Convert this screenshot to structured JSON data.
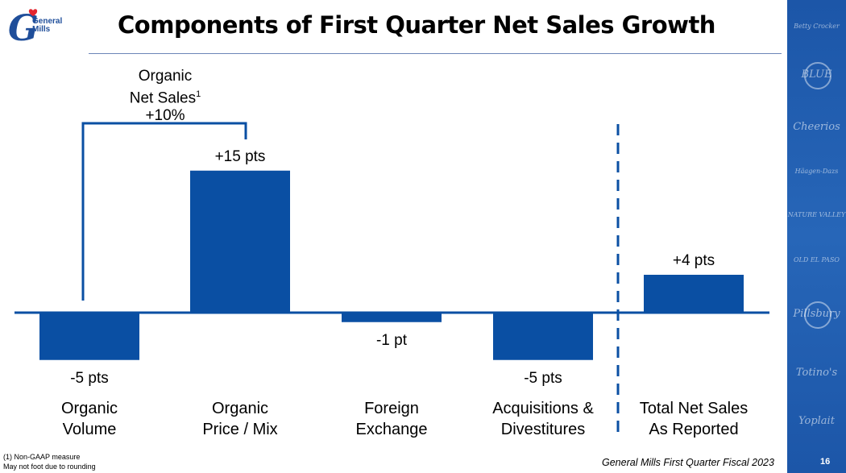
{
  "header": {
    "title": "Components of First Quarter Net Sales Growth",
    "logo_text": "General\nMills"
  },
  "bracket": {
    "line1": "Organic",
    "line2": "Net Sales",
    "sup": "1",
    "line3": "+10%"
  },
  "chart_data": {
    "type": "bar",
    "categories": [
      "Organic Volume",
      "Organic Price / Mix",
      "Foreign Exchange",
      "Acquisitions & Divestitures",
      "Total Net Sales As Reported"
    ],
    "category_lines": [
      [
        "Organic",
        "Volume"
      ],
      [
        "Organic",
        "Price / Mix"
      ],
      [
        "Foreign",
        "Exchange"
      ],
      [
        "Acquisitions &",
        "Divestitures"
      ],
      [
        "Total Net Sales",
        "As Reported"
      ]
    ],
    "values": [
      -5,
      15,
      -1,
      -5,
      4
    ],
    "data_labels": [
      "-5 pts",
      "+15 pts",
      "-1 pt",
      "-5 pts",
      "+4 pts"
    ],
    "ylabel": "",
    "xlabel": "",
    "bar_color": "#0a4fa3"
  },
  "brands": [
    "Betty Crocker",
    "BLUE",
    "Cheerios",
    "Häagen-Dazs",
    "NATURE VALLEY",
    "OLD EL PASO",
    "Pillsbury",
    "Totino's",
    "Yoplait"
  ],
  "footer": {
    "caption": "General Mills First Quarter Fiscal 2023",
    "page": "16",
    "footnote_1": "(1) Non-GAAP measure",
    "footnote_2": "May not foot due to rounding"
  }
}
